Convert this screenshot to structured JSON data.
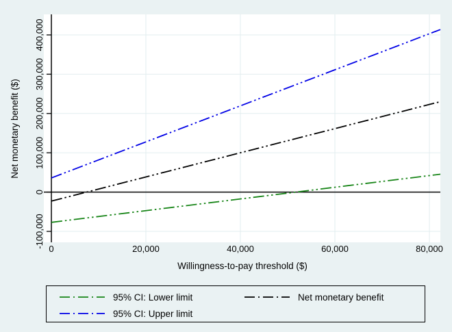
{
  "figure": {
    "background": "#eaf2f3",
    "plot_background": "#ffffff",
    "grid_color": "#e2edef",
    "axis_color": "#000000",
    "text_color": "#000000"
  },
  "chart_data": {
    "type": "line",
    "title": "",
    "xlabel": "Willingness-to-pay threshold ($)",
    "ylabel": "Net monetary benefit ($)",
    "xlim": [
      0,
      80000
    ],
    "ylim": [
      -100000,
      400000
    ],
    "x_ticks": [
      0,
      20000,
      40000,
      60000,
      80000
    ],
    "x_tick_labels": [
      "0",
      "20,000",
      "40,000",
      "60,000",
      "80,000"
    ],
    "y_ticks": [
      -100000,
      0,
      100000,
      200000,
      300000,
      400000
    ],
    "y_tick_labels": [
      "-100,000",
      "0",
      "100,000",
      "200,000",
      "300,000",
      "400,000"
    ],
    "grid": true,
    "zero_reference_line": 0,
    "legend_position": "bottom",
    "line_style": "dash_dot_dot",
    "series": [
      {
        "name": "95% CI: Lower limit",
        "color": "#168416",
        "x": [
          0,
          80000
        ],
        "values": [
          -77000,
          42000
        ]
      },
      {
        "name": "95% CI: Upper limit",
        "color": "#0000e6",
        "x": [
          0,
          80000
        ],
        "values": [
          36000,
          403000
        ]
      },
      {
        "name": "Net monetary benefit",
        "color": "#000000",
        "x": [
          0,
          80000
        ],
        "values": [
          -23000,
          223000
        ]
      }
    ]
  }
}
